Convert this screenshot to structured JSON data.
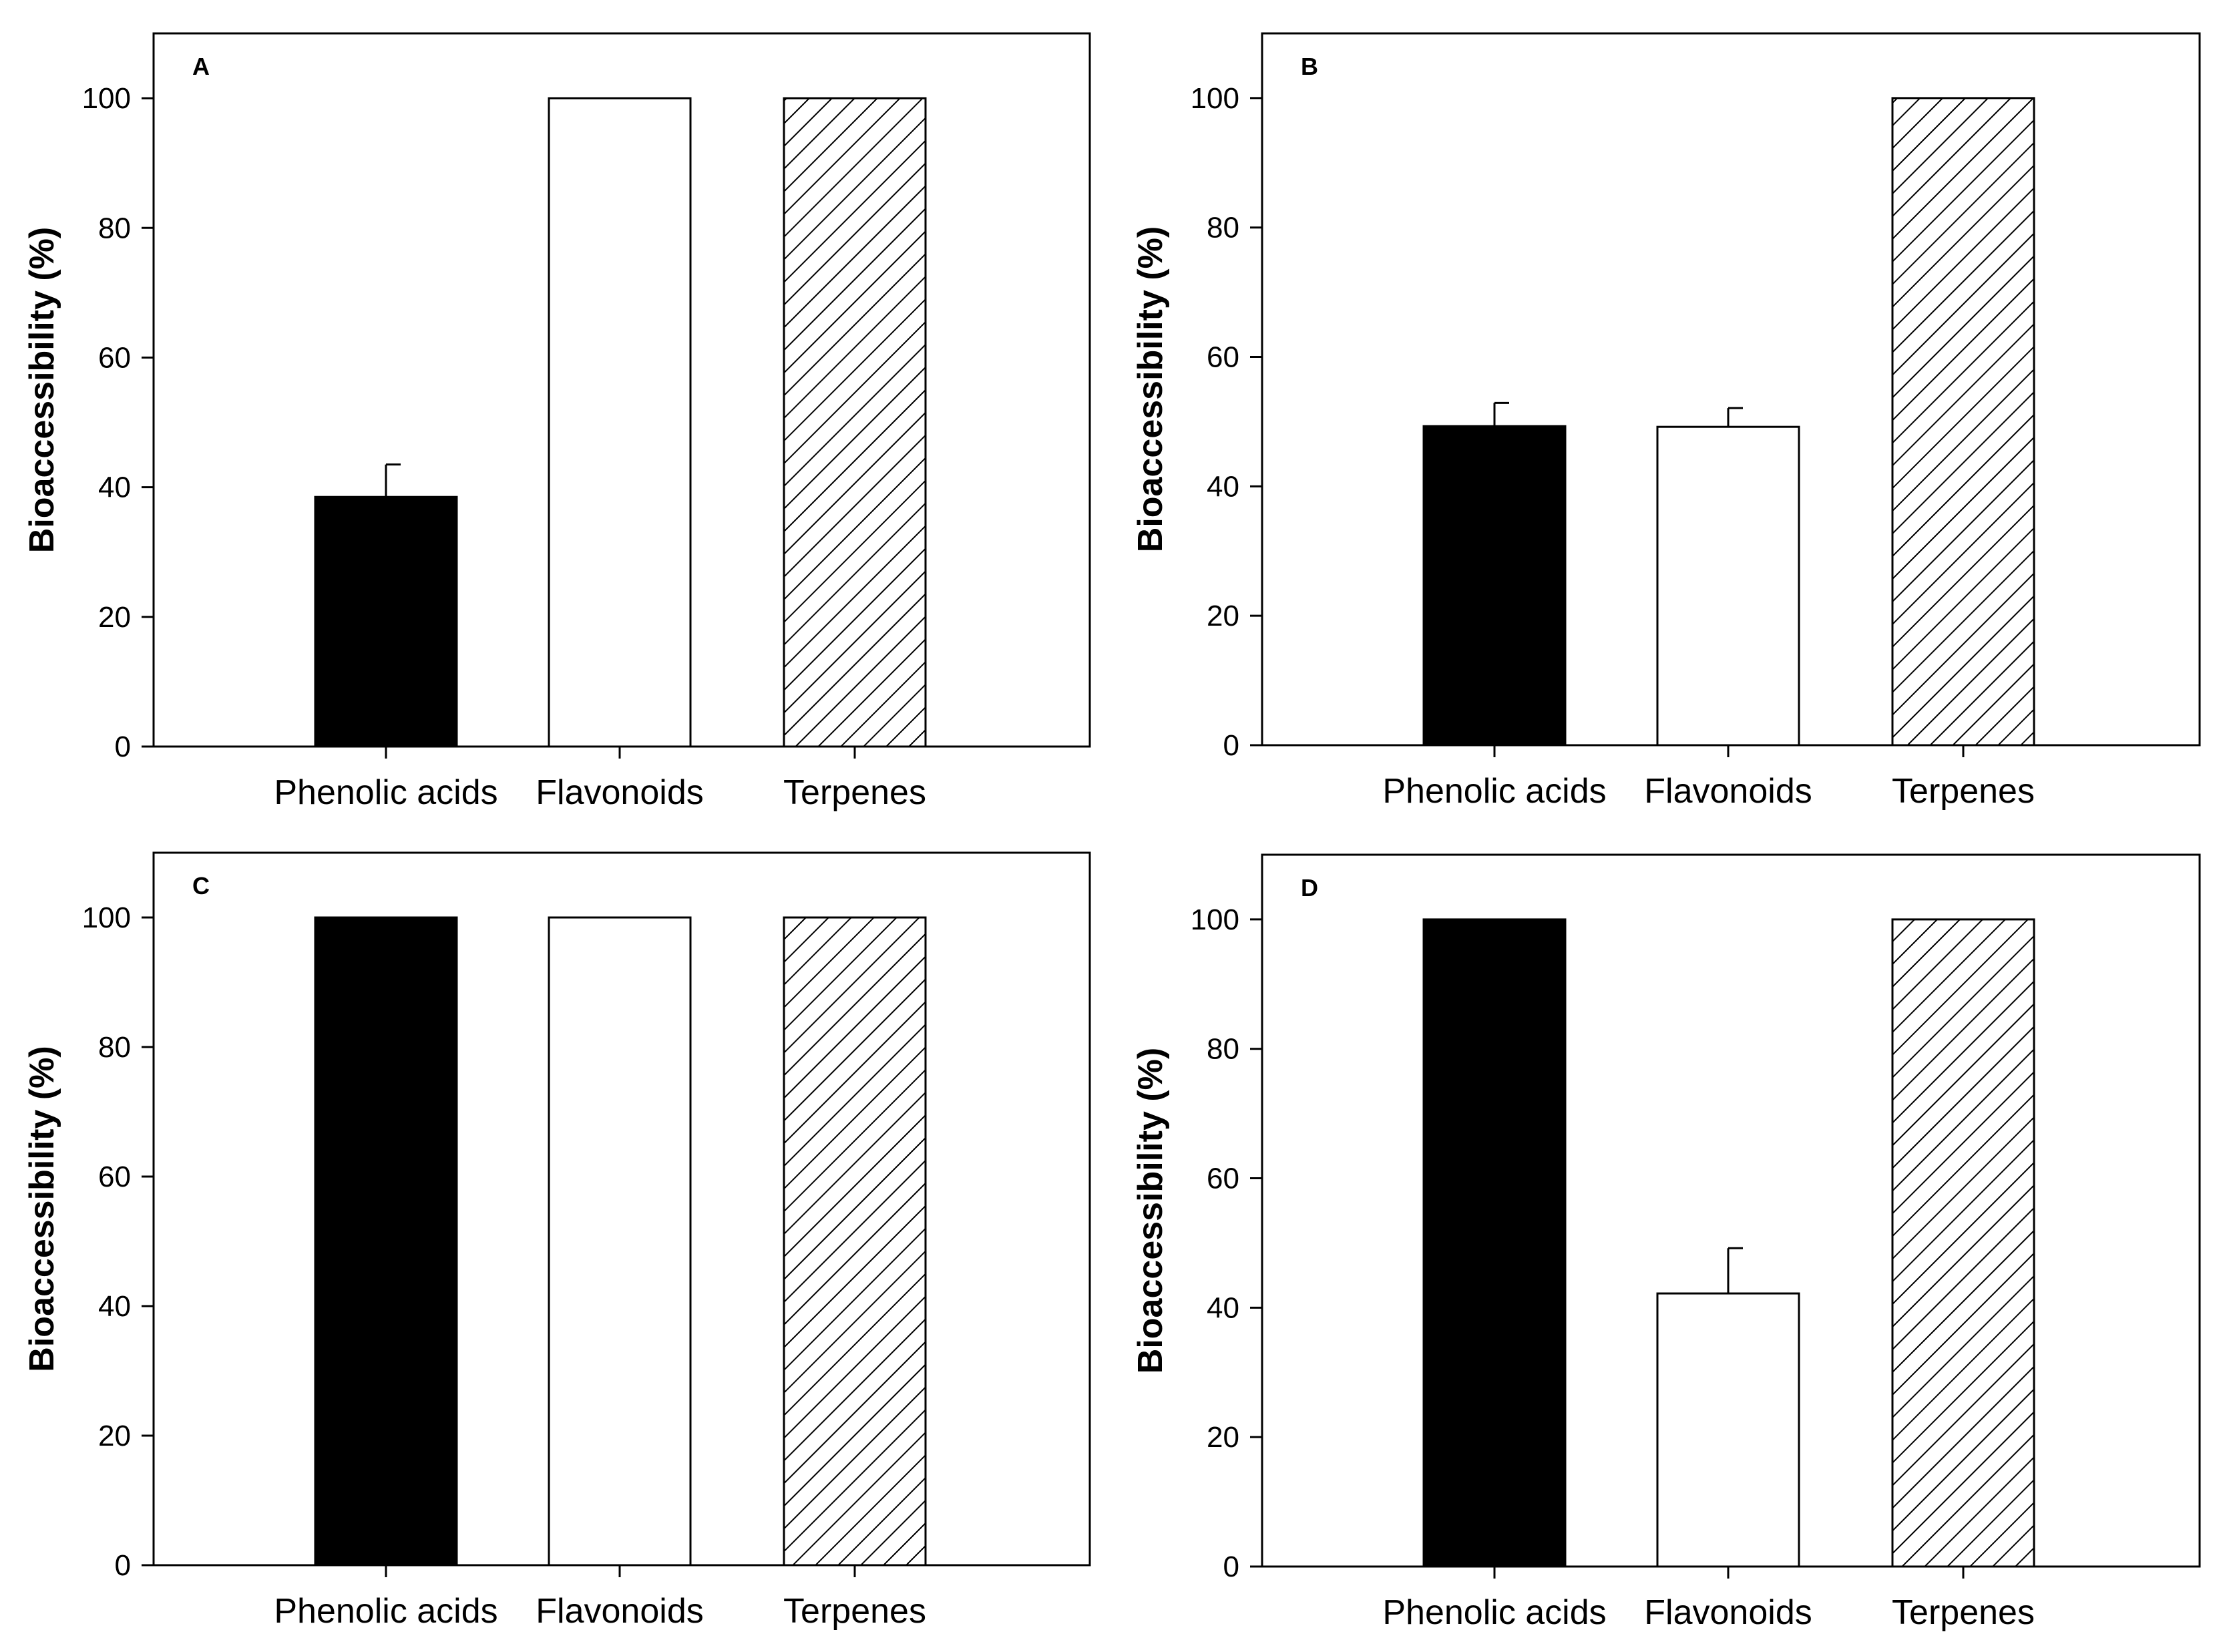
{
  "figure": {
    "panels": 4
  },
  "colors": {
    "axis": "#000000",
    "fill_solid": "#000000",
    "fill_open": "#ffffff",
    "hatch": "#000000",
    "background": "#ffffff"
  },
  "chart_data": [
    {
      "type": "bar",
      "panel_label": "A",
      "title": "",
      "xlabel": "",
      "ylabel": "Bioaccessibility (%)",
      "categories": [
        "Phenolic acids",
        "Flavonoids",
        "Terpenes"
      ],
      "values": [
        38.5,
        100,
        100
      ],
      "errors": [
        5,
        0,
        0
      ],
      "fills": [
        "solid",
        "open",
        "hatched"
      ],
      "ylim": [
        0,
        110
      ],
      "yticks": [
        0,
        20,
        40,
        60,
        80,
        100
      ],
      "grid": false
    },
    {
      "type": "bar",
      "panel_label": "B",
      "title": "",
      "xlabel": "",
      "ylabel": "Bioaccessibility (%)",
      "categories": [
        "Phenolic acids",
        "Flavonoids",
        "Terpenes"
      ],
      "values": [
        49.3,
        49.2,
        100
      ],
      "errors": [
        3.6,
        2.9,
        0
      ],
      "fills": [
        "solid",
        "open",
        "hatched"
      ],
      "ylim": [
        0,
        110
      ],
      "yticks": [
        0,
        20,
        40,
        60,
        80,
        100
      ],
      "grid": false
    },
    {
      "type": "bar",
      "panel_label": "C",
      "title": "",
      "xlabel": "",
      "ylabel": "Bioaccessibility (%)",
      "categories": [
        "Phenolic acids",
        "Flavonoids",
        "Terpenes"
      ],
      "values": [
        100,
        100,
        100
      ],
      "errors": [
        0,
        0,
        0
      ],
      "fills": [
        "solid",
        "open",
        "hatched"
      ],
      "ylim": [
        0,
        110
      ],
      "yticks": [
        0,
        20,
        40,
        60,
        80,
        100
      ],
      "grid": false
    },
    {
      "type": "bar",
      "panel_label": "D",
      "title": "",
      "xlabel": "",
      "ylabel": "Bioaccessibility (%)",
      "categories": [
        "Phenolic acids",
        "Flavonoids",
        "Terpenes"
      ],
      "values": [
        100,
        42.2,
        100
      ],
      "errors": [
        0,
        7,
        0
      ],
      "fills": [
        "solid",
        "open",
        "hatched"
      ],
      "ylim": [
        0,
        110
      ],
      "yticks": [
        0,
        20,
        40,
        60,
        80,
        100
      ],
      "grid": false
    }
  ]
}
